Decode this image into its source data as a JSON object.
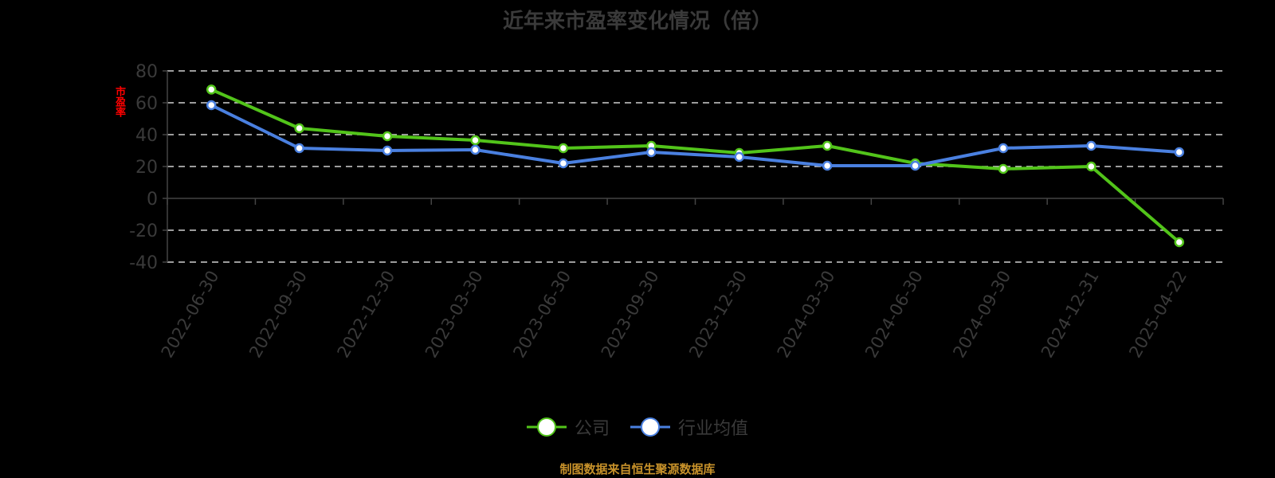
{
  "title": "近年来市盈率变化情况（倍）",
  "ylabel": "市盈率",
  "legend": [
    {
      "name": "公司",
      "color": "#52c41a"
    },
    {
      "name": "行业均值",
      "color": "#4a80e0"
    }
  ],
  "footer": "制图数据来自恒生聚源数据库",
  "chart_data": {
    "type": "line",
    "title": "近年来市盈率变化情况（倍）",
    "xlabel": "",
    "ylabel": "市盈率",
    "ylim": [
      -40,
      80
    ],
    "yticks": [
      80,
      60,
      40,
      20,
      0,
      -20,
      -40
    ],
    "grid": true,
    "legend_position": "bottom",
    "categories": [
      "2022-06-30",
      "2022-09-30",
      "2022-12-30",
      "2023-03-30",
      "2023-06-30",
      "2023-09-30",
      "2023-12-30",
      "2024-03-30",
      "2024-06-30",
      "2024-09-30",
      "2024-12-31",
      "2025-04-22"
    ],
    "series": [
      {
        "name": "公司",
        "color": "#52c41a",
        "values": [
          68.3,
          44.0,
          39.0,
          36.5,
          31.5,
          33.0,
          28.5,
          33.0,
          22.0,
          18.5,
          20.0,
          -27.5
        ]
      },
      {
        "name": "行业均值",
        "color": "#4a80e0",
        "values": [
          58.5,
          31.5,
          30.0,
          30.5,
          22.0,
          29.0,
          26.0,
          20.5,
          20.5,
          31.5,
          33.0,
          29.0
        ]
      }
    ]
  }
}
